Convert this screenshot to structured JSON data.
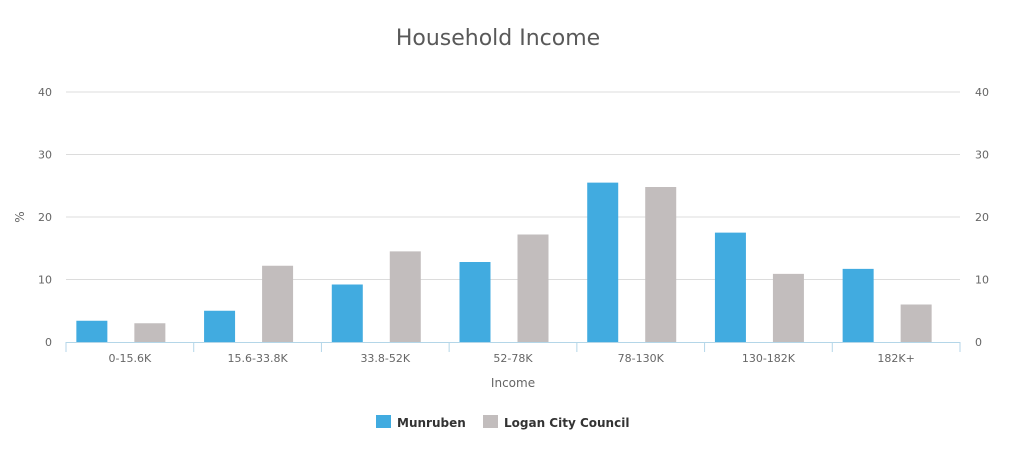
{
  "chart_data": {
    "type": "bar",
    "title": "Household Income",
    "xlabel": "Income",
    "ylabel": "%",
    "ylim": [
      0,
      40
    ],
    "yticks": [
      0,
      10,
      20,
      30,
      40
    ],
    "categories": [
      "0-15.6K",
      "15.6-33.8K",
      "33.8-52K",
      "52-78K",
      "78-130K",
      "130-182K",
      "182K+"
    ],
    "series": [
      {
        "name": "Munruben",
        "color": "#41ABE0",
        "values": [
          3.4,
          5.0,
          9.2,
          12.8,
          25.5,
          17.5,
          11.7
        ]
      },
      {
        "name": "Logan City Council",
        "color": "#C2BDBD",
        "values": [
          3.0,
          12.2,
          14.5,
          17.2,
          24.8,
          10.9,
          6.0
        ]
      }
    ],
    "grid": true,
    "legend": "bottom-center"
  }
}
